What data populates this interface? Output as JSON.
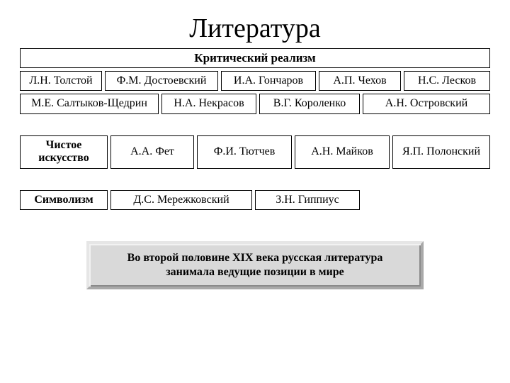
{
  "title": "Литература",
  "section1": {
    "label": "Критический реализм",
    "row1": [
      "Л.Н. Толстой",
      "Ф.М. Достоевский",
      "И.А. Гончаров",
      "А.П. Чехов",
      "Н.С. Лесков"
    ],
    "row2": [
      "М.Е. Салтыков-Щедрин",
      "Н.А. Некрасов",
      "В.Г. Короленко",
      "А.Н. Островский"
    ]
  },
  "section2": {
    "label": "Чистое искусство",
    "items": [
      "А.А. Фет",
      "Ф.И. Тютчев",
      "А.Н. Майков",
      "Я.П. Полонский"
    ]
  },
  "section3": {
    "label": "Символизм",
    "items": [
      "Д.С. Мережковский",
      "З.Н. Гиппиус"
    ]
  },
  "callout": "Во второй половине XIX века русская литература занимала ведущие позиции в мире",
  "style": {
    "bg_color": "#ffffff",
    "text_color": "#000000",
    "border_color": "#000000",
    "callout_bg": "#d9d9d9",
    "callout_border_light": "#e6e6e6",
    "callout_border_dark": "#a9a9a9",
    "title_fontsize": 38,
    "cell_fontsize": 16,
    "subtitle_fontsize": 17
  }
}
